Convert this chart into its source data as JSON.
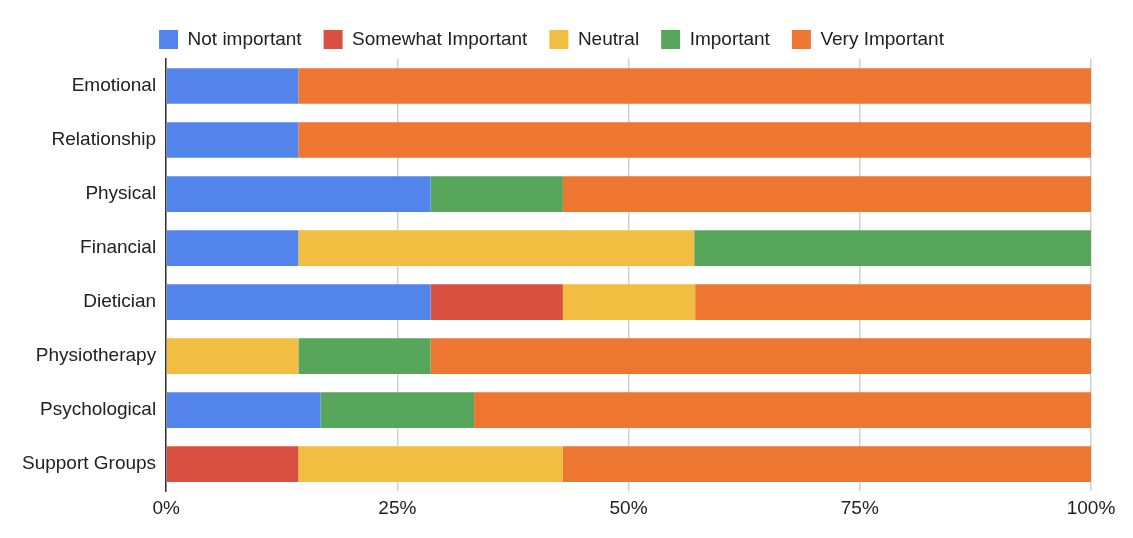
{
  "chart_data": {
    "type": "bar",
    "orientation": "horizontal",
    "stacked": true,
    "categories": [
      "Emotional",
      "Relationship",
      "Physical",
      "Financial",
      "Dietician",
      "Physiotherapy",
      "Psychological",
      "Support Groups"
    ],
    "series": [
      {
        "name": "Not important",
        "color": "#5384ec",
        "values": [
          14.3,
          14.3,
          28.6,
          14.3,
          28.6,
          0,
          16.7,
          0
        ]
      },
      {
        "name": "Somewhat Important",
        "color": "#d95040",
        "values": [
          0,
          0,
          0,
          0,
          14.3,
          0,
          0,
          14.3
        ]
      },
      {
        "name": "Neutral",
        "color": "#f1be42",
        "values": [
          0,
          0,
          0,
          42.8,
          14.3,
          14.3,
          0,
          28.6
        ]
      },
      {
        "name": "Important",
        "color": "#58a55c",
        "values": [
          0,
          0,
          14.3,
          42.9,
          0,
          14.3,
          16.6,
          0
        ]
      },
      {
        "name": "Very Important",
        "color": "#ed7631",
        "values": [
          85.7,
          85.7,
          57.1,
          0,
          42.8,
          71.4,
          66.7,
          57.1
        ]
      }
    ],
    "xlim": [
      0,
      100
    ],
    "xticks": [
      {
        "value": 0,
        "label": "0%"
      },
      {
        "value": 25,
        "label": "25%"
      },
      {
        "value": 50,
        "label": "50%"
      },
      {
        "value": 75,
        "label": "75%"
      },
      {
        "value": 100,
        "label": "100%"
      }
    ],
    "grid": "x",
    "legend": "top"
  }
}
